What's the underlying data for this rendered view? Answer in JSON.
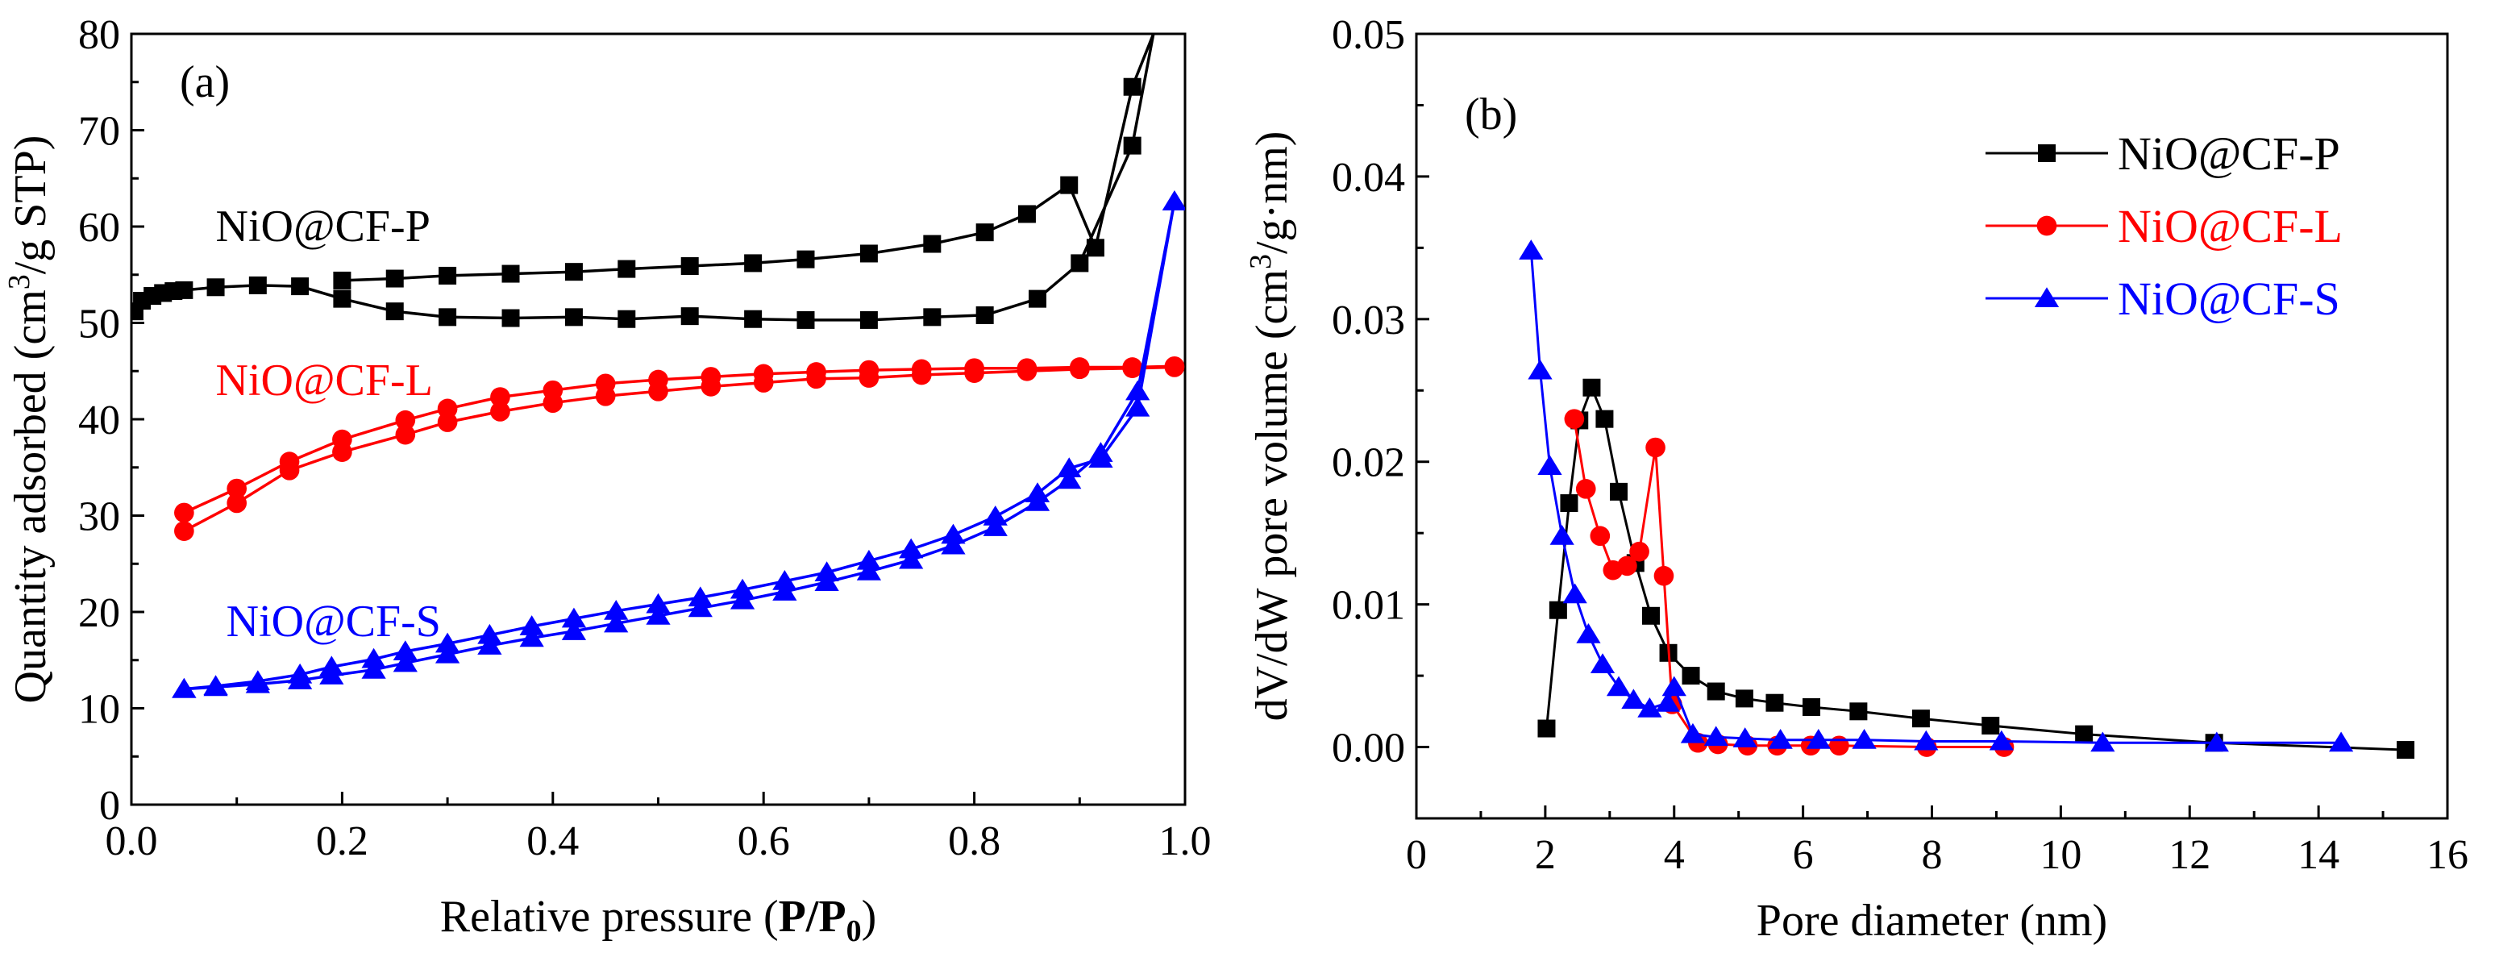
{
  "chart_data": [
    {
      "type": "line",
      "panel_label": "(a)",
      "xlabel_pre": "Relative pressure (",
      "xlabel_bold": "P/P",
      "xlabel_sub": "0",
      "xlabel_post": ")",
      "ylabel_pre": "Quantity adsorbed (cm",
      "ylabel_sup": "3",
      "ylabel_post": "/g STP)",
      "xlim": [
        0,
        1.0
      ],
      "ylim": [
        0,
        80
      ],
      "xticks": [
        "0.0",
        "0.2",
        "0.4",
        "0.6",
        "0.8",
        "1.0"
      ],
      "xtick_values": [
        0,
        0.2,
        0.4,
        0.6,
        0.8,
        1.0
      ],
      "yticks": [
        "0",
        "10",
        "20",
        "30",
        "40",
        "50",
        "60",
        "70",
        "80"
      ],
      "ytick_values": [
        0,
        10,
        20,
        30,
        40,
        50,
        60,
        70,
        80
      ],
      "series": [
        {
          "name": "NiO@CF-P",
          "color": "#000000",
          "marker": "square",
          "label_pos": [
            0.08,
            58.5
          ],
          "adsorption": {
            "x": [
              0.003,
              0.01,
              0.02,
              0.03,
              0.04,
              0.05,
              0.08,
              0.12,
              0.16,
              0.2,
              0.25,
              0.3,
              0.36,
              0.42,
              0.47,
              0.53,
              0.59,
              0.64,
              0.7,
              0.76,
              0.81,
              0.86,
              0.9,
              0.95,
              0.97
            ],
            "y": [
              51.2,
              52.3,
              52.8,
              53.1,
              53.3,
              53.4,
              53.7,
              53.9,
              53.8,
              52.5,
              51.2,
              50.6,
              50.5,
              50.6,
              50.4,
              50.7,
              50.4,
              50.3,
              50.3,
              50.6,
              50.8,
              52.5,
              56.2,
              68.4,
              80
            ]
          },
          "desorption": {
            "x": [
              0.2,
              0.25,
              0.3,
              0.36,
              0.42,
              0.47,
              0.53,
              0.59,
              0.64,
              0.7,
              0.76,
              0.81,
              0.85,
              0.89,
              0.915,
              0.95,
              0.97
            ],
            "y": [
              54.4,
              54.6,
              54.9,
              55.1,
              55.3,
              55.6,
              55.9,
              56.2,
              56.6,
              57.2,
              58.2,
              59.4,
              61.3,
              64.3,
              57.8,
              74.5,
              80
            ]
          }
        },
        {
          "name": "NiO@CF-L",
          "color": "#ff0000",
          "marker": "circle",
          "label_pos": [
            0.08,
            42.5
          ],
          "adsorption": {
            "x": [
              0.05,
              0.1,
              0.15,
              0.2,
              0.26,
              0.3,
              0.35,
              0.4,
              0.45,
              0.5,
              0.55,
              0.6,
              0.65,
              0.7,
              0.75,
              0.8,
              0.85,
              0.9,
              0.95,
              0.99
            ],
            "y": [
              28.4,
              31.3,
              34.7,
              36.6,
              38.4,
              39.7,
              40.8,
              41.7,
              42.4,
              42.9,
              43.4,
              43.8,
              44.2,
              44.3,
              44.6,
              44.8,
              45.0,
              45.2,
              45.3,
              45.4
            ],
            "marker_idx": [
              0,
              1,
              2,
              3,
              4,
              5,
              6,
              7,
              8,
              9,
              10,
              11,
              12,
              13,
              14,
              15,
              16,
              17,
              18
            ]
          },
          "desorption": {
            "x": [
              0.05,
              0.1,
              0.15,
              0.2,
              0.26,
              0.3,
              0.35,
              0.4,
              0.45,
              0.5,
              0.55,
              0.6,
              0.65,
              0.7,
              0.75,
              0.8,
              0.85,
              0.9,
              0.95,
              0.99
            ],
            "y": [
              30.3,
              32.8,
              35.6,
              37.9,
              39.9,
              41.1,
              42.3,
              43.0,
              43.7,
              44.1,
              44.4,
              44.7,
              44.9,
              45.1,
              45.2,
              45.3,
              45.3,
              45.4,
              45.4,
              45.5
            ]
          }
        },
        {
          "name": "NiO@CF-S",
          "color": "#0000ff",
          "marker": "triangle",
          "label_pos": [
            0.09,
            17.5
          ],
          "adsorption": {
            "x": [
              0.05,
              0.08,
              0.12,
              0.16,
              0.19,
              0.23,
              0.26,
              0.3,
              0.34,
              0.38,
              0.42,
              0.46,
              0.5,
              0.54,
              0.58,
              0.62,
              0.66,
              0.7,
              0.74,
              0.78,
              0.82,
              0.86,
              0.89,
              0.92,
              0.955,
              0.99
            ],
            "y": [
              12.0,
              12.2,
              12.5,
              12.9,
              13.4,
              14.0,
              14.7,
              15.6,
              16.5,
              17.3,
              18.0,
              18.8,
              19.6,
              20.4,
              21.2,
              22.1,
              23.1,
              24.2,
              25.4,
              26.9,
              28.8,
              31.4,
              33.7,
              36.5,
              42.9,
              62.6
            ]
          },
          "desorption": {
            "x": [
              0.05,
              0.08,
              0.12,
              0.16,
              0.19,
              0.23,
              0.26,
              0.3,
              0.34,
              0.38,
              0.42,
              0.46,
              0.5,
              0.54,
              0.58,
              0.62,
              0.66,
              0.7,
              0.74,
              0.78,
              0.82,
              0.86,
              0.89,
              0.92,
              0.955,
              0.99
            ],
            "y": [
              12.0,
              12.3,
              12.8,
              13.5,
              14.3,
              15.1,
              15.9,
              16.7,
              17.6,
              18.5,
              19.3,
              20.1,
              20.8,
              21.5,
              22.3,
              23.2,
              24.1,
              25.3,
              26.5,
              28.0,
              29.9,
              32.3,
              34.9,
              35.9,
              41.2,
              62.6
            ]
          }
        }
      ]
    },
    {
      "type": "line",
      "panel_label": "(b)",
      "xlabel": "Pore diameter (nm)",
      "ylabel_pre": "dV/dW pore volume (cm",
      "ylabel_sup": "3",
      "ylabel_post": "/g·nm)",
      "xlim": [
        0,
        16
      ],
      "ylim": [
        -0.005,
        0.05
      ],
      "xticks": [
        "0",
        "2",
        "4",
        "6",
        "8",
        "10",
        "12",
        "14",
        "16"
      ],
      "xtick_values": [
        0,
        2,
        4,
        6,
        8,
        10,
        12,
        14,
        16
      ],
      "yticks": [
        "0.00",
        "0.01",
        "0.02",
        "0.03",
        "0.04",
        "0.05"
      ],
      "ytick_values": [
        0,
        0.01,
        0.02,
        0.03,
        0.04,
        0.05
      ],
      "legend": {
        "position": "top-right"
      },
      "series": [
        {
          "name": "NiO@CF-P",
          "color": "#000000",
          "marker": "square",
          "x": [
            2.02,
            2.2,
            2.37,
            2.53,
            2.72,
            2.92,
            3.14,
            3.4,
            3.64,
            3.91,
            4.26,
            4.65,
            5.09,
            5.56,
            6.13,
            6.86,
            7.83,
            8.91,
            10.36,
            12.38,
            15.35
          ],
          "y": [
            0.0013,
            0.0096,
            0.0171,
            0.0229,
            0.0252,
            0.023,
            0.0179,
            0.0129,
            0.0092,
            0.0066,
            0.005,
            0.0039,
            0.0034,
            0.0031,
            0.0028,
            0.0025,
            0.002,
            0.0015,
            0.0009,
            0.0003,
            -0.0002
          ]
        },
        {
          "name": "NiO@CF-L",
          "color": "#ff0000",
          "marker": "circle",
          "x": [
            2.45,
            2.63,
            2.85,
            3.05,
            3.27,
            3.46,
            3.71,
            3.84,
            3.97,
            4.37,
            4.68,
            5.14,
            5.6,
            6.12,
            6.56,
            7.92,
            9.12
          ],
          "y": [
            0.023,
            0.0181,
            0.0148,
            0.0124,
            0.0127,
            0.0137,
            0.021,
            0.012,
            0.003,
            0.0003,
            0.0002,
            0.0001,
            0.0001,
            0.0001,
            0.0001,
            0.0,
            0.0
          ]
        },
        {
          "name": "NiO@CF-S",
          "color": "#0000ff",
          "marker": "triangle",
          "x": [
            1.78,
            1.92,
            2.07,
            2.26,
            2.46,
            2.67,
            2.89,
            3.14,
            3.37,
            3.62,
            3.9,
            4.0,
            4.29,
            4.65,
            5.1,
            5.65,
            6.24,
            6.95,
            7.91,
            9.08,
            10.65,
            12.42,
            14.35
          ],
          "y": [
            0.0348,
            0.0264,
            0.0197,
            0.0148,
            0.0107,
            0.0079,
            0.0058,
            0.0042,
            0.0033,
            0.0027,
            0.0031,
            0.0042,
            0.0009,
            0.0007,
            0.0006,
            0.0005,
            0.0005,
            0.0005,
            0.0004,
            0.0004,
            0.0003,
            0.0003,
            0.0003
          ]
        }
      ]
    }
  ]
}
